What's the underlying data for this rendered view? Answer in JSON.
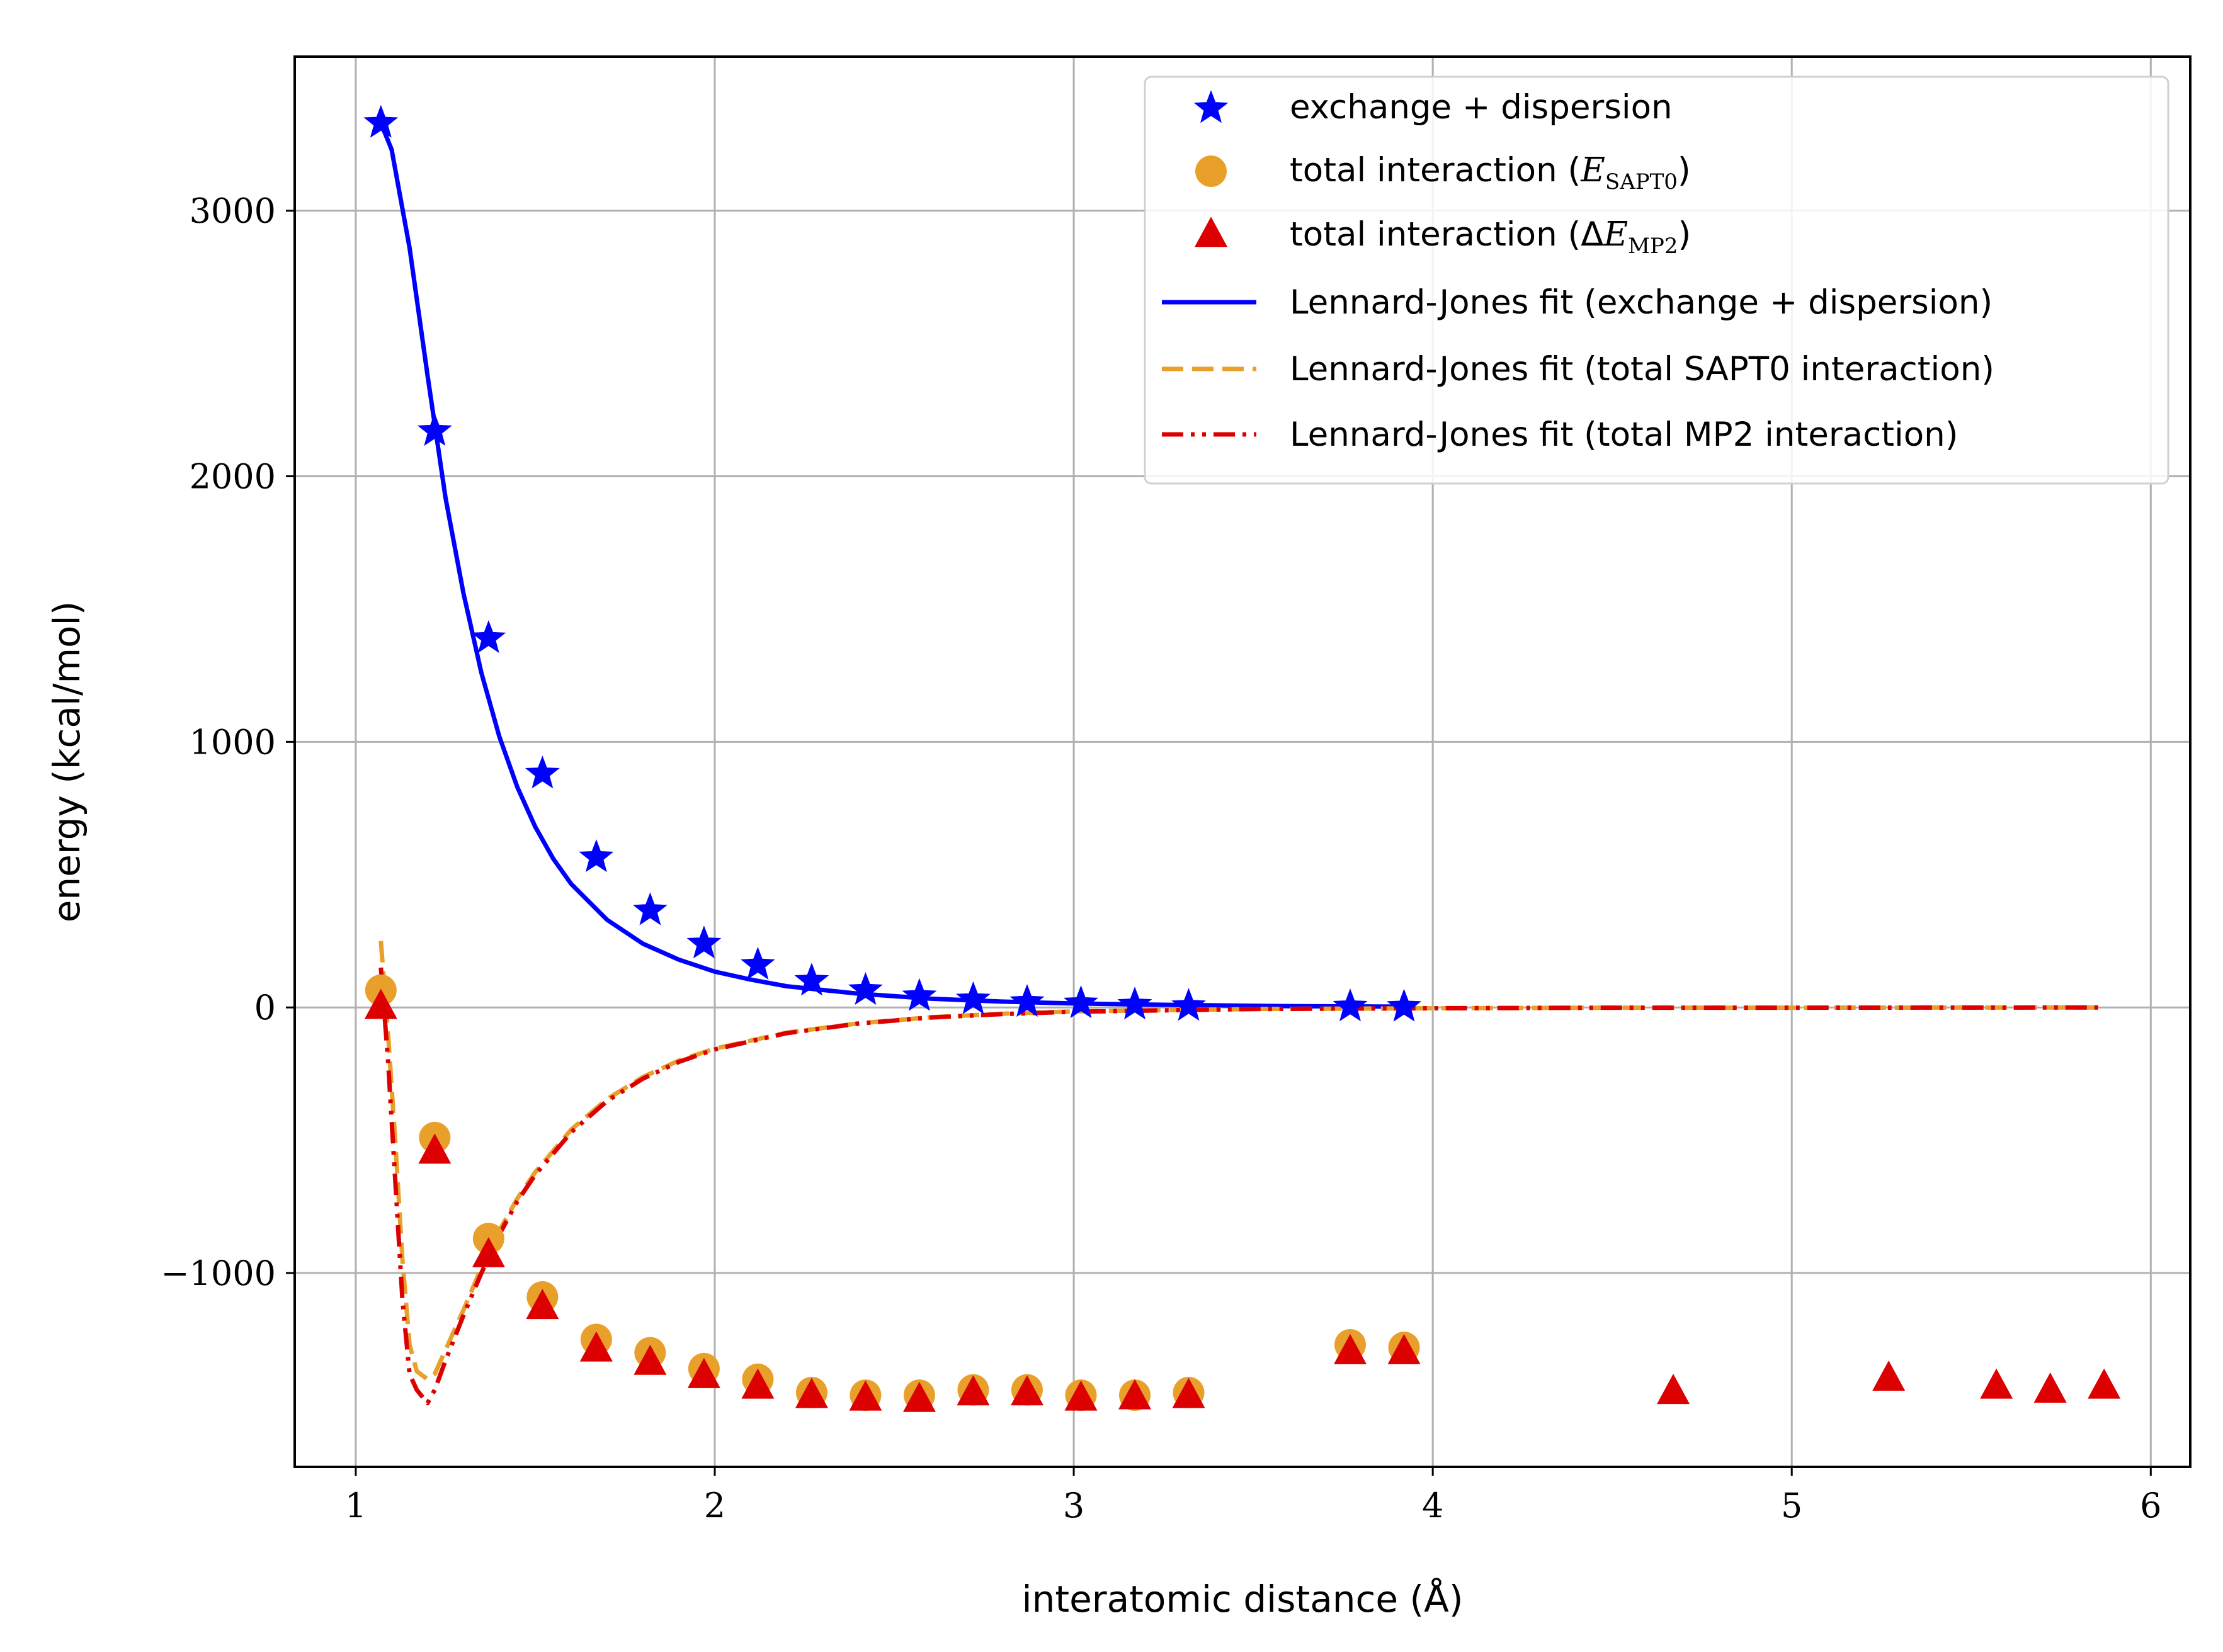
{
  "chart_data": {
    "type": "scatter",
    "title": "",
    "xlabel": "interatomic distance (Å)",
    "ylabel": "energy (kcal/mol)",
    "xlim": [
      0.83,
      6.11
    ],
    "ylim": [
      -1730,
      3580
    ],
    "grid": true,
    "legend_position": "top-right",
    "x_ticks": [
      {
        "value": 1,
        "label": "1"
      },
      {
        "value": 2,
        "label": "2"
      },
      {
        "value": 3,
        "label": "3"
      },
      {
        "value": 4,
        "label": "4"
      },
      {
        "value": 5,
        "label": "5"
      },
      {
        "value": 6,
        "label": "6"
      }
    ],
    "y_ticks": [
      {
        "value": 3000,
        "label": "3000"
      },
      {
        "value": 2000,
        "label": "2000"
      },
      {
        "value": 1000,
        "label": "1000"
      },
      {
        "value": 0,
        "label": "0"
      },
      {
        "value": -1000,
        "label": "−1000"
      }
    ],
    "legend": [
      {
        "key": "exch",
        "label": "exchange + dispersion",
        "parts": [
          {
            "t": "exchange + dispersion"
          }
        ]
      },
      {
        "key": "sapt",
        "label": "total interaction (E_SAPT0)",
        "parts": [
          {
            "t": "total interaction ("
          },
          {
            "t": "E",
            "math": true
          },
          {
            "t": "SAPT0",
            "sub": true
          },
          {
            "t": ")"
          }
        ]
      },
      {
        "key": "mp2",
        "label": "total interaction (ΔE_MP2)",
        "parts": [
          {
            "t": "total interaction ("
          },
          {
            "t": "Δ"
          },
          {
            "t": "E",
            "math": true
          },
          {
            "t": "MP2",
            "sub": true
          },
          {
            "t": ")"
          }
        ]
      },
      {
        "key": "fit_exch",
        "label": "Lennard-Jones fit (exchange + dispersion)",
        "parts": [
          {
            "t": "Lennard-Jones fit (exchange + dispersion)"
          }
        ]
      },
      {
        "key": "fit_sapt",
        "label": "Lennard-Jones fit (total SAPT0 interaction)",
        "parts": [
          {
            "t": "Lennard-Jones fit (total SAPT0 interaction)"
          }
        ]
      },
      {
        "key": "fit_mp2",
        "label": "Lennard-Jones fit (total MP2 interaction)",
        "parts": [
          {
            "t": "Lennard-Jones fit (total MP2 interaction)"
          }
        ]
      }
    ],
    "series": [
      {
        "key": "exch",
        "kind": "scatter",
        "marker": "star",
        "color": "#0000ff",
        "points": [
          [
            1.07,
            3330
          ],
          [
            1.22,
            2170
          ],
          [
            1.37,
            1390
          ],
          [
            1.52,
            880
          ],
          [
            1.67,
            565
          ],
          [
            1.82,
            365
          ],
          [
            1.97,
            240
          ],
          [
            2.12,
            160
          ],
          [
            2.27,
            100
          ],
          [
            2.42,
            65
          ],
          [
            2.57,
            42
          ],
          [
            2.72,
            30
          ],
          [
            2.87,
            20
          ],
          [
            3.02,
            15
          ],
          [
            3.17,
            10
          ],
          [
            3.32,
            5
          ],
          [
            3.77,
            3
          ],
          [
            3.92,
            2
          ]
        ]
      },
      {
        "key": "sapt",
        "kind": "scatter",
        "marker": "circle",
        "color": "#e8a02a",
        "points": [
          [
            1.07,
            65
          ],
          [
            1.22,
            -490
          ],
          [
            1.37,
            -870
          ],
          [
            1.52,
            -1090
          ],
          [
            1.67,
            -1250
          ],
          [
            1.82,
            -1300
          ],
          [
            1.97,
            -1360
          ],
          [
            2.12,
            -1400
          ],
          [
            2.27,
            -1450
          ],
          [
            2.42,
            -1460
          ],
          [
            2.57,
            -1460
          ],
          [
            2.72,
            -1440
          ],
          [
            2.87,
            -1440
          ],
          [
            3.02,
            -1460
          ],
          [
            3.17,
            -1460
          ],
          [
            3.32,
            -1450
          ],
          [
            3.77,
            -1270
          ],
          [
            3.92,
            -1280
          ]
        ]
      },
      {
        "key": "mp2",
        "kind": "scatter",
        "marker": "triangle",
        "color": "#dd0000",
        "points": [
          [
            1.07,
            0
          ],
          [
            1.22,
            -545
          ],
          [
            1.37,
            -935
          ],
          [
            1.52,
            -1130
          ],
          [
            1.67,
            -1290
          ],
          [
            1.82,
            -1340
          ],
          [
            1.97,
            -1390
          ],
          [
            2.12,
            -1430
          ],
          [
            2.27,
            -1465
          ],
          [
            2.42,
            -1475
          ],
          [
            2.57,
            -1480
          ],
          [
            2.72,
            -1455
          ],
          [
            2.87,
            -1455
          ],
          [
            3.02,
            -1475
          ],
          [
            3.17,
            -1470
          ],
          [
            3.32,
            -1465
          ],
          [
            3.77,
            -1300
          ],
          [
            3.92,
            -1300
          ],
          [
            4.67,
            -1450
          ],
          [
            5.27,
            -1400
          ],
          [
            5.57,
            -1430
          ],
          [
            5.72,
            -1445
          ],
          [
            5.87,
            -1430
          ]
        ]
      },
      {
        "key": "fit_exch",
        "kind": "line",
        "dash": "solid",
        "color": "#0000ff",
        "points": [
          [
            1.07,
            3330
          ],
          [
            1.1,
            3230
          ],
          [
            1.15,
            2860
          ],
          [
            1.2,
            2380
          ],
          [
            1.25,
            1920
          ],
          [
            1.3,
            1560
          ],
          [
            1.35,
            1260
          ],
          [
            1.4,
            1020
          ],
          [
            1.45,
            830
          ],
          [
            1.5,
            680
          ],
          [
            1.55,
            560
          ],
          [
            1.6,
            465
          ],
          [
            1.7,
            330
          ],
          [
            1.8,
            240
          ],
          [
            1.9,
            180
          ],
          [
            2.0,
            135
          ],
          [
            2.1,
            105
          ],
          [
            2.2,
            80
          ],
          [
            2.4,
            52
          ],
          [
            2.6,
            33
          ],
          [
            2.8,
            22
          ],
          [
            3.0,
            15
          ],
          [
            3.3,
            9
          ],
          [
            3.6,
            5
          ],
          [
            3.9,
            3
          ]
        ]
      },
      {
        "key": "fit_sapt",
        "kind": "line",
        "dash": "dashed",
        "color": "#e8a02a",
        "points": [
          [
            1.07,
            250
          ],
          [
            1.09,
            -100
          ],
          [
            1.11,
            -500
          ],
          [
            1.13,
            -950
          ],
          [
            1.15,
            -1270
          ],
          [
            1.17,
            -1370
          ],
          [
            1.2,
            -1400
          ],
          [
            1.22,
            -1380
          ],
          [
            1.25,
            -1290
          ],
          [
            1.3,
            -1140
          ],
          [
            1.35,
            -980
          ],
          [
            1.4,
            -840
          ],
          [
            1.45,
            -720
          ],
          [
            1.5,
            -620
          ],
          [
            1.6,
            -460
          ],
          [
            1.7,
            -345
          ],
          [
            1.8,
            -262
          ],
          [
            1.9,
            -200
          ],
          [
            2.0,
            -155
          ],
          [
            2.2,
            -95
          ],
          [
            2.4,
            -60
          ],
          [
            2.6,
            -37
          ],
          [
            2.8,
            -24
          ],
          [
            3.0,
            -15
          ],
          [
            3.5,
            -6
          ],
          [
            4.0,
            -3
          ],
          [
            4.5,
            -1
          ],
          [
            5.0,
            -1
          ],
          [
            5.87,
            0
          ]
        ]
      },
      {
        "key": "fit_mp2",
        "kind": "line",
        "dash": "dashdot",
        "color": "#dd0000",
        "points": [
          [
            1.07,
            150
          ],
          [
            1.09,
            -200
          ],
          [
            1.11,
            -650
          ],
          [
            1.13,
            -1100
          ],
          [
            1.15,
            -1380
          ],
          [
            1.17,
            -1440
          ],
          [
            1.2,
            -1490
          ],
          [
            1.22,
            -1440
          ],
          [
            1.25,
            -1330
          ],
          [
            1.3,
            -1160
          ],
          [
            1.35,
            -1000
          ],
          [
            1.4,
            -855
          ],
          [
            1.45,
            -730
          ],
          [
            1.5,
            -630
          ],
          [
            1.6,
            -470
          ],
          [
            1.7,
            -352
          ],
          [
            1.8,
            -268
          ],
          [
            1.9,
            -205
          ],
          [
            2.0,
            -158
          ],
          [
            2.2,
            -97
          ],
          [
            2.4,
            -61
          ],
          [
            2.6,
            -38
          ],
          [
            2.8,
            -25
          ],
          [
            3.0,
            -16
          ],
          [
            3.5,
            -6
          ],
          [
            4.0,
            -3
          ],
          [
            4.5,
            -1
          ],
          [
            5.0,
            -1
          ],
          [
            5.87,
            0
          ]
        ]
      }
    ]
  }
}
